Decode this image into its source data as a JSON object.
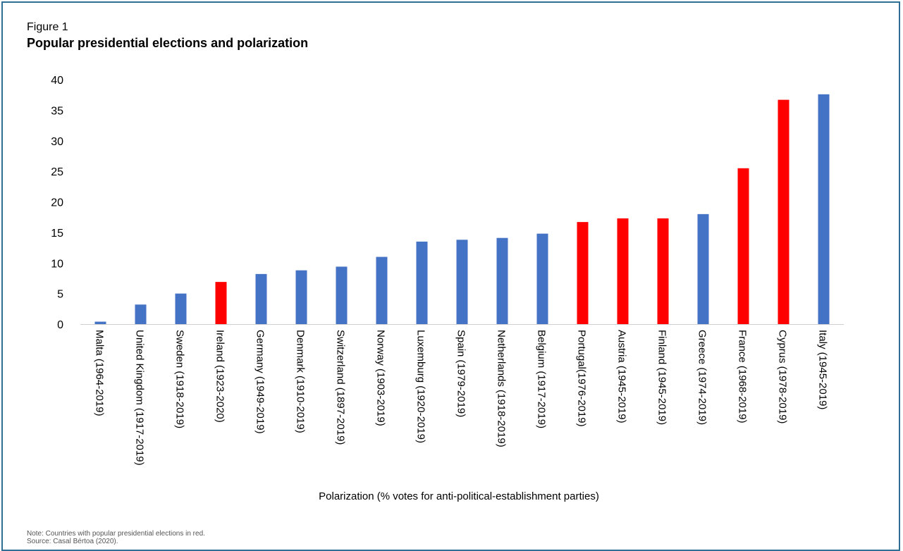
{
  "figure": {
    "label": "Figure 1",
    "title": "Popular presidential elections and polarization",
    "note": "Note: Countries with popular presidential elections in red.",
    "source": "Source: Casal Bértoa (2020)."
  },
  "colors": {
    "blue": "#4472c4",
    "red": "#ff0000",
    "axis": "#d0d0d0"
  },
  "chart_data": {
    "type": "bar",
    "xlabel": "Polarization (% votes for anti-political-establishment parties)",
    "ylabel": "",
    "ylim": [
      0,
      40
    ],
    "yticks": [
      0,
      5,
      10,
      15,
      20,
      25,
      30,
      35,
      40
    ],
    "grid": false,
    "legend": "none",
    "categories": [
      "Malta (1964-2019)",
      "United Kingdom (1917-2019)",
      "Sweden (1918-2019)",
      "Ireland (1923-2020)",
      "Germany (1949-2019)",
      "Denmark (1910-2019)",
      "Switzerland (1897-2019)",
      "Norway (1903-2019)",
      "Luxemburg (1920-2019)",
      "Spain (1979-2019)",
      "Netherlands (1918-2019)",
      "Belgium (1917-2019)",
      "Portugal(1976-2019)",
      "Austria (1945-2019)",
      "Finland (1945-2019)",
      "Greece (1974-2019)",
      "France (1968-2019)",
      "Cyprus (1978-2019)",
      "Italy (1945-2019)"
    ],
    "values": [
      0.4,
      3.2,
      5.0,
      6.9,
      8.2,
      8.8,
      9.4,
      11.0,
      13.5,
      13.8,
      14.1,
      14.8,
      16.7,
      17.3,
      17.3,
      18.0,
      25.5,
      36.7,
      37.6
    ],
    "popular_presidential": [
      false,
      false,
      false,
      true,
      false,
      false,
      false,
      false,
      false,
      false,
      false,
      false,
      true,
      true,
      true,
      false,
      true,
      true,
      false
    ]
  }
}
